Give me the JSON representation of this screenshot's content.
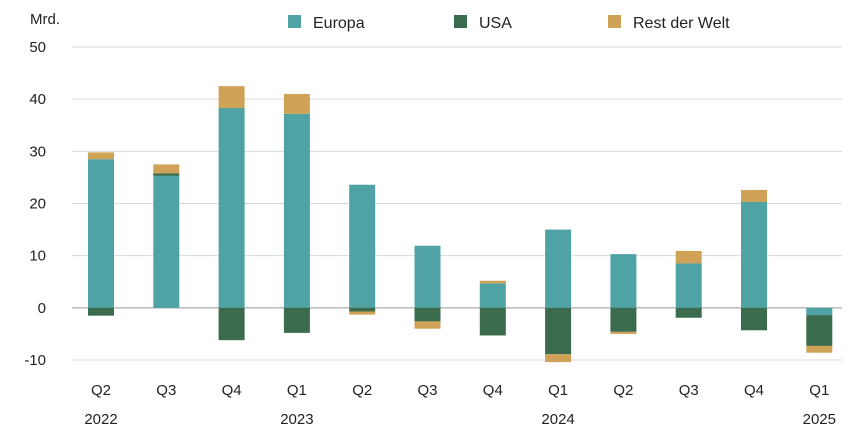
{
  "chart_data": {
    "type": "bar",
    "stacked": true,
    "unit_label": "Mrd.",
    "categories": [
      "Q2",
      "Q3",
      "Q4",
      "Q1",
      "Q2",
      "Q3",
      "Q4",
      "Q1",
      "Q2",
      "Q3",
      "Q4",
      "Q1"
    ],
    "years": [
      {
        "label": "2022",
        "index": 0
      },
      {
        "label": "2023",
        "index": 3
      },
      {
        "label": "2024",
        "index": 7
      },
      {
        "label": "2025",
        "index": 11
      }
    ],
    "ylim": [
      -10,
      50
    ],
    "yticks": [
      -10,
      0,
      10,
      20,
      30,
      40,
      50
    ],
    "grid": true,
    "legend_position": "top",
    "series": [
      {
        "name": "Europa",
        "color": "#4fa3a5",
        "values": [
          28.5,
          25.3,
          38.3,
          37.2,
          23.6,
          11.9,
          4.7,
          15.0,
          10.3,
          8.5,
          20.3,
          -1.4
        ]
      },
      {
        "name": "USA",
        "color": "#3a6b4d",
        "values": [
          -1.5,
          0.5,
          -6.2,
          -4.8,
          -0.7,
          -2.6,
          -5.3,
          -8.9,
          -4.6,
          -1.9,
          -4.3,
          -5.9
        ]
      },
      {
        "name": "Rest der Welt",
        "color": "#cfa257",
        "values": [
          1.3,
          1.7,
          4.2,
          3.8,
          -0.6,
          -1.4,
          0.5,
          -1.5,
          -0.4,
          2.4,
          2.3,
          -1.3
        ]
      }
    ]
  }
}
